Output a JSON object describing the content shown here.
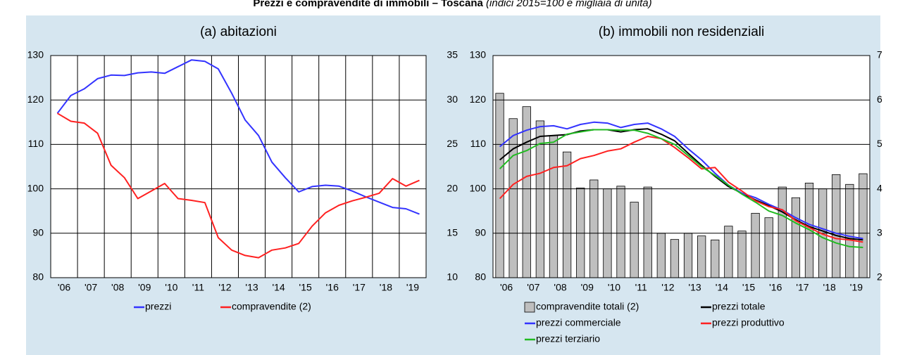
{
  "title": "Prezzi e compravendite di immobili – Toscana",
  "subtitle": "(indici 2015=100 e migliaia di unità)",
  "chart_data": [
    {
      "type": "line",
      "title": "(a) abitazioni",
      "categories": [
        "'06",
        null,
        "'07",
        null,
        "'08",
        null,
        "'09",
        null,
        "'10",
        null,
        "'11",
        null,
        "'12",
        null,
        "'13",
        null,
        "'14",
        null,
        "'15",
        null,
        "'16",
        null,
        "'17",
        null,
        "'18",
        null,
        "'19",
        null
      ],
      "ylim": [
        80,
        130
      ],
      "yticks": [
        80,
        90,
        100,
        110,
        120,
        130
      ],
      "grid": true,
      "legend": "bottom",
      "series": [
        {
          "name": "prezzi",
          "color": "#3333ff",
          "type": "line",
          "values": [
            117,
            121,
            122.5,
            124.8,
            125.6,
            125.5,
            126.1,
            126.3,
            126,
            127.5,
            129,
            128.7,
            127,
            121.5,
            115.5,
            112,
            106,
            102.5,
            99.3,
            100.5,
            100.8,
            100.6,
            99.5,
            98.2,
            97,
            95.8,
            95.5,
            94.3
          ]
        },
        {
          "name": "compravendite (2)",
          "color": "#ff2020",
          "type": "line",
          "values": [
            117,
            115.2,
            114.8,
            112.5,
            105.3,
            102.5,
            97.8,
            99.5,
            101.2,
            97.8,
            97.4,
            96.9,
            89,
            86.2,
            85,
            84.5,
            86.2,
            86.7,
            87.7,
            91.6,
            94.6,
            96.3,
            97.3,
            98.1,
            99,
            102.3,
            100.6,
            101.9
          ]
        }
      ]
    },
    {
      "type": "bar-line",
      "title": "(b) immobili non residenziali",
      "categories": [
        "'06",
        null,
        "'07",
        null,
        "'08",
        null,
        "'09",
        null,
        "'10",
        null,
        "'11",
        null,
        "'12",
        null,
        "'13",
        null,
        "'14",
        null,
        "'15",
        null,
        "'16",
        null,
        "'17",
        null,
        "'18",
        null,
        "'19",
        null
      ],
      "ylim": [
        80,
        130
      ],
      "yticks": [
        80,
        90,
        100,
        110,
        120,
        130
      ],
      "y2lim": [
        2,
        7
      ],
      "y2ticks": [
        2,
        3,
        4,
        5,
        6,
        7
      ],
      "y3lim": [
        10,
        35
      ],
      "y3ticks": [
        10,
        15,
        20,
        25,
        30,
        35
      ],
      "grid": true,
      "legend": "bottom",
      "series": [
        {
          "name": "compravendite totali (2)",
          "color": "#bfbfbf",
          "type": "bar",
          "axis": "y2",
          "values": [
            6.15,
            5.58,
            5.85,
            5.53,
            5.2,
            4.83,
            4.02,
            4.2,
            4.0,
            4.06,
            3.7,
            4.04,
            3.0,
            2.86,
            3.0,
            2.94,
            2.85,
            3.16,
            3.05,
            3.45,
            3.35,
            4.04,
            3.8,
            4.13,
            4.0,
            4.32,
            4.1,
            4.34
          ]
        },
        {
          "name": "prezzi totale",
          "color": "#000000",
          "type": "line",
          "values": [
            106.5,
            109,
            110.5,
            111.8,
            112,
            112.2,
            113,
            113.3,
            113.3,
            112.8,
            113.3,
            113.5,
            112.3,
            110.8,
            108,
            105.3,
            102.8,
            100.5,
            99,
            97.5,
            96.2,
            94.8,
            93,
            91.5,
            90.5,
            89.5,
            88.8,
            88.5
          ]
        },
        {
          "name": "prezzi commerciale",
          "color": "#3333ff",
          "type": "line",
          "values": [
            109.5,
            112,
            113.2,
            114,
            114.2,
            113.5,
            114.5,
            115,
            114.8,
            113.8,
            114.5,
            114.8,
            113.5,
            111.8,
            109,
            106.5,
            103.5,
            100.8,
            99,
            98,
            96.5,
            95.2,
            93.5,
            92,
            91,
            90,
            89.3,
            88.8
          ]
        },
        {
          "name": "prezzi produttivo",
          "color": "#ff2020",
          "type": "line",
          "values": [
            97.8,
            101,
            102.8,
            103.5,
            104.8,
            105.2,
            106.8,
            107.5,
            108.5,
            109,
            110.5,
            111.8,
            111.3,
            109.3,
            107,
            104.5,
            104.8,
            101.5,
            99.5,
            97.3,
            96,
            95.3,
            92.8,
            91.3,
            89.8,
            88.8,
            88.5,
            88
          ]
        },
        {
          "name": "prezzi terziario",
          "color": "#22bb22",
          "type": "line",
          "values": [
            104.5,
            107.5,
            108.6,
            110.2,
            110.5,
            112.3,
            112.8,
            113.3,
            113.3,
            113.2,
            113.2,
            112.5,
            111.3,
            110,
            107.5,
            105,
            103,
            100.8,
            98.8,
            97,
            95,
            94,
            92.3,
            90.8,
            89,
            87.8,
            87,
            86.8
          ]
        }
      ]
    }
  ]
}
